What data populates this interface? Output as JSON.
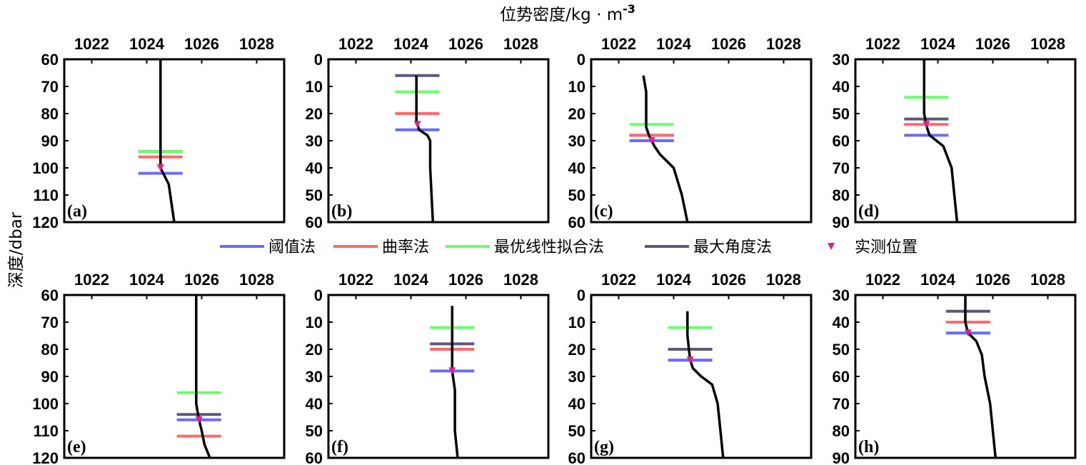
{
  "figure": {
    "xlabel": "位势密度/kg · m",
    "xlabel_sup": "-3",
    "ylabel": "深度/dbar"
  },
  "legend": [
    {
      "key": "threshold",
      "label": "阈值法",
      "color": "#6a6aff",
      "marker": "line"
    },
    {
      "key": "curvature",
      "label": "曲率法",
      "color": "#ff6a6a",
      "marker": "line"
    },
    {
      "key": "optimal",
      "label": "最优线性拟合法",
      "color": "#6aff6a",
      "marker": "line"
    },
    {
      "key": "maxangle",
      "label": "最大角度法",
      "color": "#5a5a78",
      "marker": "line"
    },
    {
      "key": "measured",
      "label": "实测位置",
      "color": "#e0208a",
      "marker": "triangle-down"
    }
  ],
  "chart_data": [
    {
      "panel": "(a)",
      "type": "line",
      "xlim": [
        1021,
        1029
      ],
      "xticks": [
        1022,
        1024,
        1026,
        1028
      ],
      "ylim": [
        60,
        120
      ],
      "yticks": [
        60,
        70,
        80,
        90,
        100,
        110,
        120
      ],
      "y_reversed": true,
      "profile": {
        "x": [
          1024.5,
          1024.5,
          1024.5,
          1024.5,
          1024.6,
          1024.8,
          1025.0
        ],
        "y": [
          60,
          80,
          95,
          100,
          102,
          106,
          120
        ]
      },
      "mld": {
        "threshold": 102,
        "curvature": 96,
        "optimal": 94,
        "maxangle": 94,
        "measured": 100
      }
    },
    {
      "panel": "(b)",
      "type": "line",
      "xlim": [
        1021,
        1029
      ],
      "xticks": [
        1022,
        1024,
        1026,
        1028
      ],
      "ylim": [
        0,
        60
      ],
      "yticks": [
        0,
        10,
        20,
        30,
        40,
        50,
        60
      ],
      "y_reversed": true,
      "profile": {
        "x": [
          1024.2,
          1024.2,
          1024.2,
          1024.3,
          1024.6,
          1024.7,
          1024.7,
          1024.8
        ],
        "y": [
          6,
          15,
          23,
          26,
          28,
          30,
          40,
          60
        ]
      },
      "mld": {
        "threshold": 26,
        "curvature": 20,
        "optimal": 12,
        "maxangle": 6,
        "measured": 24
      }
    },
    {
      "panel": "(c)",
      "type": "line",
      "xlim": [
        1021,
        1029
      ],
      "xticks": [
        1022,
        1024,
        1026,
        1028
      ],
      "ylim": [
        0,
        60
      ],
      "yticks": [
        0,
        10,
        20,
        30,
        40,
        50,
        60
      ],
      "y_reversed": true,
      "profile": {
        "x": [
          1022.9,
          1023.0,
          1023.0,
          1023.1,
          1023.3,
          1023.5,
          1024.0,
          1024.3,
          1024.5
        ],
        "y": [
          6,
          12,
          25,
          28,
          32,
          35,
          40,
          50,
          60
        ]
      },
      "mld": {
        "threshold": 30,
        "curvature": 28,
        "optimal": 24,
        "maxangle": 28,
        "measured": 30
      }
    },
    {
      "panel": "(d)",
      "type": "line",
      "xlim": [
        1021,
        1029
      ],
      "xticks": [
        1022,
        1024,
        1026,
        1028
      ],
      "ylim": [
        30,
        90
      ],
      "yticks": [
        30,
        40,
        50,
        60,
        70,
        80,
        90
      ],
      "y_reversed": true,
      "profile": {
        "x": [
          1023.5,
          1023.5,
          1023.6,
          1023.7,
          1024.2,
          1024.5,
          1024.6,
          1024.7
        ],
        "y": [
          30,
          50,
          55,
          58,
          62,
          70,
          80,
          90
        ]
      },
      "mld": {
        "threshold": 58,
        "curvature": 54,
        "optimal": 44,
        "maxangle": 52,
        "measured": 54
      }
    },
    {
      "panel": "(e)",
      "type": "line",
      "xlim": [
        1021,
        1029
      ],
      "xticks": [
        1022,
        1024,
        1026,
        1028
      ],
      "ylim": [
        60,
        120
      ],
      "yticks": [
        60,
        70,
        80,
        90,
        100,
        110,
        120
      ],
      "y_reversed": true,
      "profile": {
        "x": [
          1025.8,
          1025.8,
          1025.8,
          1025.9,
          1026.0,
          1026.1,
          1026.3
        ],
        "y": [
          60,
          90,
          100,
          106,
          110,
          115,
          120
        ]
      },
      "mld": {
        "threshold": 106,
        "curvature": 112,
        "optimal": 96,
        "maxangle": 104,
        "measured": 106
      }
    },
    {
      "panel": "(f)",
      "type": "line",
      "xlim": [
        1021,
        1029
      ],
      "xticks": [
        1022,
        1024,
        1026,
        1028
      ],
      "ylim": [
        0,
        60
      ],
      "yticks": [
        0,
        10,
        20,
        30,
        40,
        50,
        60
      ],
      "y_reversed": true,
      "profile": {
        "x": [
          1025.5,
          1025.5,
          1025.5,
          1025.6,
          1025.6,
          1025.7
        ],
        "y": [
          4,
          20,
          28,
          35,
          50,
          60
        ]
      },
      "mld": {
        "threshold": 28,
        "curvature": 20,
        "optimal": 12,
        "maxangle": 18,
        "measured": 28
      }
    },
    {
      "panel": "(g)",
      "type": "line",
      "xlim": [
        1021,
        1029
      ],
      "xticks": [
        1022,
        1024,
        1026,
        1028
      ],
      "ylim": [
        0,
        60
      ],
      "yticks": [
        0,
        10,
        20,
        30,
        40,
        50,
        60
      ],
      "y_reversed": true,
      "profile": {
        "x": [
          1024.5,
          1024.5,
          1024.6,
          1024.7,
          1025.0,
          1025.4,
          1025.6,
          1025.7,
          1025.8
        ],
        "y": [
          6,
          15,
          24,
          27,
          30,
          33,
          40,
          50,
          60
        ]
      },
      "mld": {
        "threshold": 24,
        "curvature": 24,
        "optimal": 12,
        "maxangle": 20,
        "measured": 24
      }
    },
    {
      "panel": "(h)",
      "type": "line",
      "xlim": [
        1021,
        1029
      ],
      "xticks": [
        1022,
        1024,
        1026,
        1028
      ],
      "ylim": [
        30,
        90
      ],
      "yticks": [
        30,
        40,
        50,
        60,
        70,
        80,
        90
      ],
      "y_reversed": true,
      "profile": {
        "x": [
          1025.0,
          1025.0,
          1025.1,
          1025.4,
          1025.6,
          1025.7,
          1025.9,
          1026.0,
          1026.1
        ],
        "y": [
          30,
          40,
          44,
          47,
          52,
          60,
          70,
          80,
          90
        ]
      },
      "mld": {
        "threshold": 44,
        "curvature": 40,
        "optimal": 44,
        "maxangle": 36,
        "measured": 44
      }
    }
  ]
}
